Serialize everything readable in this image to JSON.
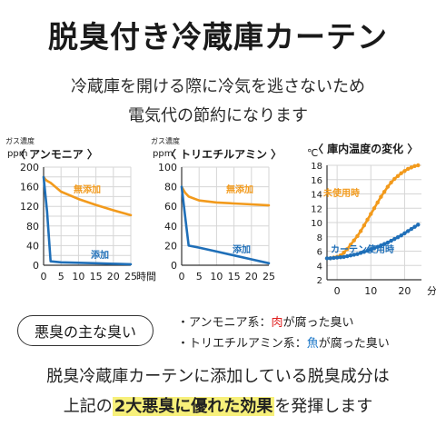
{
  "title": "脱臭付き冷蔵庫カーテン",
  "subtitle_lines": [
    "冷蔵庫を開ける際に冷気を逃さないため",
    "電気代の節約になります"
  ],
  "colors": {
    "orange": "#f29a1c",
    "blue": "#1f6fb8",
    "text": "#1a1a1a"
  },
  "chart_data": [
    {
      "type": "line",
      "title": "〈 アンモニア 〉",
      "ylabel": "ガス濃度 ppm",
      "xlabel": "時間",
      "ylim": [
        0,
        200
      ],
      "yticks": [
        0,
        20,
        40,
        60,
        80,
        100,
        120,
        140,
        160,
        180,
        200
      ],
      "xticks": [
        0,
        5,
        10,
        15,
        20,
        25
      ],
      "xlim": [
        0,
        25
      ],
      "series": [
        {
          "name": "無添加",
          "color": "#f29a1c",
          "x": [
            0,
            0.5,
            1,
            2,
            5,
            10,
            15,
            20,
            25
          ],
          "y": [
            180,
            175,
            172,
            168,
            150,
            135,
            123,
            112,
            102
          ]
        },
        {
          "name": "添加",
          "color": "#1f6fb8",
          "x": [
            0,
            1,
            2,
            5,
            10,
            15,
            20,
            25
          ],
          "y": [
            180,
            110,
            8,
            6,
            5,
            4,
            3,
            2
          ]
        }
      ]
    },
    {
      "type": "line",
      "title": "〈 トリエチルアミン 〉",
      "ylabel": "ガス濃度 ppm",
      "xlabel": "",
      "ylim": [
        0,
        100
      ],
      "yticks": [
        0,
        20,
        40,
        60,
        80,
        100
      ],
      "xticks": [
        0,
        5,
        10,
        15,
        20,
        25
      ],
      "xlim": [
        0,
        25
      ],
      "series": [
        {
          "name": "無添加",
          "color": "#f29a1c",
          "x": [
            0,
            1,
            2,
            5,
            10,
            15,
            20,
            25
          ],
          "y": [
            80,
            74,
            70,
            66,
            64,
            63,
            62,
            61
          ]
        },
        {
          "name": "添加",
          "color": "#1f6fb8",
          "x": [
            0,
            1,
            2,
            5,
            10,
            15,
            20,
            25
          ],
          "y": [
            80,
            50,
            20,
            18,
            14,
            10,
            6,
            2
          ]
        }
      ]
    },
    {
      "type": "line",
      "title": "〈 庫内温度の変化 〉",
      "ylabel": "℃",
      "xlabel": "分",
      "ylim": [
        2,
        18
      ],
      "yticks": [
        2,
        4,
        6,
        8,
        10,
        12,
        14,
        16,
        18
      ],
      "xticks": [
        0,
        10,
        20
      ],
      "xlim": [
        -3,
        25
      ],
      "series": [
        {
          "name": "未使用時",
          "color": "#f29a1c",
          "x": [
            -3,
            -2,
            -1,
            0,
            1,
            2,
            3,
            4,
            5,
            6,
            7,
            8,
            9,
            10,
            11,
            12,
            13,
            14,
            15,
            16,
            17,
            18,
            19,
            20,
            21,
            22,
            23,
            24
          ],
          "y": [
            5,
            5,
            5.1,
            5.2,
            5.4,
            5.8,
            6.3,
            6.9,
            7.5,
            8.1,
            8.8,
            9.6,
            10.4,
            11.2,
            12,
            12.8,
            13.6,
            14.3,
            15,
            15.6,
            16.1,
            16.5,
            16.9,
            17.2,
            17.5,
            17.7,
            17.9,
            18
          ]
        },
        {
          "name": "カーテン使用時",
          "color": "#1f6fb8",
          "x": [
            -3,
            -2,
            -1,
            0,
            1,
            2,
            3,
            4,
            5,
            6,
            7,
            8,
            9,
            10,
            11,
            12,
            13,
            14,
            15,
            16,
            17,
            18,
            19,
            20,
            21,
            22,
            23,
            24
          ],
          "y": [
            5,
            5,
            5.05,
            5.1,
            5.15,
            5.2,
            5.3,
            5.4,
            5.5,
            5.6,
            5.75,
            5.9,
            6.05,
            6.2,
            6.4,
            6.6,
            6.8,
            7.0,
            7.2,
            7.45,
            7.7,
            7.95,
            8.2,
            8.5,
            8.8,
            9.1,
            9.4,
            9.7
          ]
        }
      ]
    }
  ],
  "smell_label": "悪臭の主な臭い",
  "smell_items": [
    {
      "prefix": "・アンモニア系：",
      "highlight": "肉",
      "suffix": "が腐った臭い"
    },
    {
      "prefix": "・トリエチルアミン系：",
      "highlight": "魚",
      "suffix": "が腐った臭い"
    }
  ],
  "bottom_line1": "脱臭冷蔵庫カーテンに添加している脱臭成分は",
  "bottom_line2_prefix": "上記の",
  "bottom_line2_mark": "2大悪臭に優れた効果",
  "bottom_line2_suffix": "を発揮します"
}
